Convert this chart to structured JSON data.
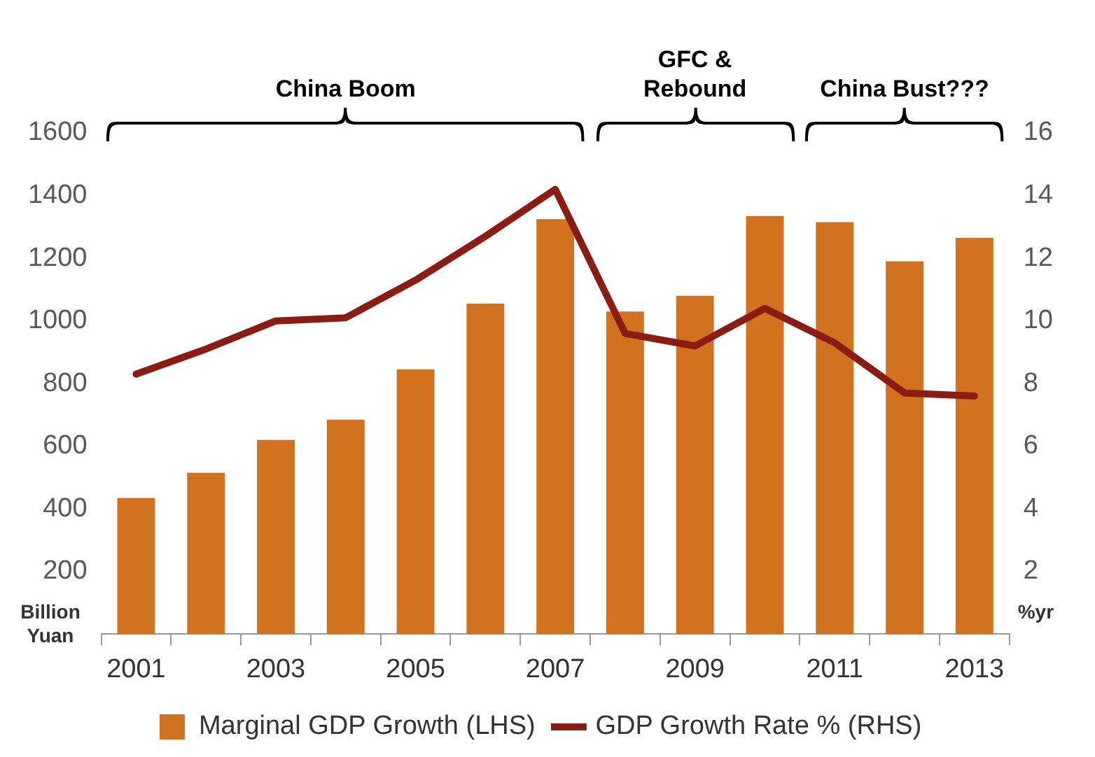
{
  "chart_data": {
    "type": "bar",
    "categories": [
      "2001",
      null,
      "2003",
      null,
      "2005",
      null,
      "2007",
      null,
      "2009",
      null,
      "2011",
      null,
      "2013"
    ],
    "series": [
      {
        "name": "Marginal GDP Growth (LHS)",
        "color": "#d2711e",
        "values": [
          435,
          515,
          620,
          685,
          845,
          1055,
          1325,
          1030,
          1080,
          1335,
          1315,
          1190,
          1265
        ]
      },
      {
        "name": "GDP Growth Rate % (RHS)",
        "type": "line",
        "axis": "y2",
        "color": "#8b1c12",
        "values": [
          8.3,
          9.1,
          10.0,
          10.1,
          11.3,
          12.7,
          14.2,
          9.6,
          9.2,
          10.4,
          9.3,
          7.7,
          7.6
        ]
      }
    ],
    "ylabel": "Billion Yuan",
    "y2label": "%yr",
    "ylim": [
      0,
      1600
    ],
    "yticks": [
      200,
      400,
      600,
      800,
      1000,
      1200,
      1400,
      1600
    ],
    "y2lim": [
      0,
      16
    ],
    "y2ticks": [
      2,
      4,
      6,
      8,
      10,
      12,
      14,
      16
    ],
    "annotations": [
      "China Boom",
      "GFC &\nRebound",
      "China Bust???"
    ],
    "grid": false,
    "legend": "bottom",
    "marker": "none",
    "line_style": "solid"
  }
}
